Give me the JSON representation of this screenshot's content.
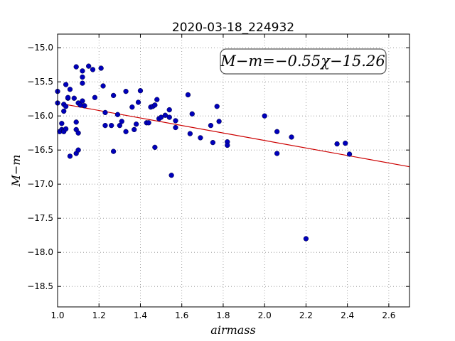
{
  "chart_data": {
    "type": "scatter",
    "title": "2020-03-18_224932",
    "xlabel": "airmass",
    "ylabel": "M−m",
    "xlim": [
      1.0,
      2.7
    ],
    "ylim": [
      -18.8,
      -14.8
    ],
    "xticks": [
      1.0,
      1.2,
      1.4,
      1.6,
      1.8,
      2.0,
      2.2,
      2.4,
      2.6
    ],
    "xtick_labels": [
      "1.0",
      "1.2",
      "1.4",
      "1.6",
      "1.8",
      "2.0",
      "2.2",
      "2.4",
      "2.6"
    ],
    "yticks": [
      -15.0,
      -15.5,
      -16.0,
      -16.5,
      -17.0,
      -17.5,
      -18.0,
      -18.5
    ],
    "ytick_labels": [
      "−15.0",
      "−15.5",
      "−16.0",
      "−16.5",
      "−17.0",
      "−17.5",
      "−18.0",
      "−18.5"
    ],
    "grid": true,
    "annotation": "M−m=−0.55χ−15.26",
    "annotation_placement": "top-right",
    "fit": {
      "slope": -0.55,
      "intercept": -15.26,
      "color": "#cc0000",
      "x_range": [
        1.03,
        2.7
      ]
    },
    "points_color": "#0000bb",
    "points": [
      [
        1.0,
        -15.64
      ],
      [
        1.0,
        -15.81
      ],
      [
        1.01,
        -16.23
      ],
      [
        1.02,
        -16.2
      ],
      [
        1.02,
        -16.11
      ],
      [
        1.03,
        -15.93
      ],
      [
        1.03,
        -16.21
      ],
      [
        1.03,
        -16.23
      ],
      [
        1.03,
        -15.83
      ],
      [
        1.04,
        -15.86
      ],
      [
        1.04,
        -15.54
      ],
      [
        1.04,
        -16.19
      ],
      [
        1.05,
        -15.74
      ],
      [
        1.05,
        -15.73
      ],
      [
        1.06,
        -15.61
      ],
      [
        1.06,
        -16.59
      ],
      [
        1.08,
        -15.74
      ],
      [
        1.09,
        -15.28
      ],
      [
        1.09,
        -16.55
      ],
      [
        1.09,
        -16.2
      ],
      [
        1.09,
        -16.09
      ],
      [
        1.1,
        -16.25
      ],
      [
        1.1,
        -16.5
      ],
      [
        1.1,
        -15.81
      ],
      [
        1.11,
        -15.84
      ],
      [
        1.12,
        -15.43
      ],
      [
        1.12,
        -15.34
      ],
      [
        1.12,
        -15.52
      ],
      [
        1.12,
        -15.78
      ],
      [
        1.13,
        -15.85
      ],
      [
        1.15,
        -15.27
      ],
      [
        1.17,
        -15.32
      ],
      [
        1.18,
        -15.73
      ],
      [
        1.21,
        -15.3
      ],
      [
        1.22,
        -15.56
      ],
      [
        1.23,
        -15.95
      ],
      [
        1.23,
        -16.14
      ],
      [
        1.26,
        -16.14
      ],
      [
        1.27,
        -15.7
      ],
      [
        1.27,
        -16.52
      ],
      [
        1.29,
        -15.98
      ],
      [
        1.3,
        -16.14
      ],
      [
        1.31,
        -16.08
      ],
      [
        1.33,
        -15.64
      ],
      [
        1.33,
        -16.23
      ],
      [
        1.36,
        -15.87
      ],
      [
        1.37,
        -16.2
      ],
      [
        1.38,
        -16.12
      ],
      [
        1.39,
        -15.8
      ],
      [
        1.4,
        -15.63
      ],
      [
        1.43,
        -16.1
      ],
      [
        1.44,
        -16.1
      ],
      [
        1.45,
        -15.87
      ],
      [
        1.46,
        -15.86
      ],
      [
        1.47,
        -15.84
      ],
      [
        1.47,
        -16.46
      ],
      [
        1.48,
        -15.76
      ],
      [
        1.49,
        -16.04
      ],
      [
        1.5,
        -16.02
      ],
      [
        1.52,
        -15.99
      ],
      [
        1.54,
        -16.02
      ],
      [
        1.54,
        -15.91
      ],
      [
        1.55,
        -16.87
      ],
      [
        1.57,
        -16.07
      ],
      [
        1.57,
        -16.17
      ],
      [
        1.63,
        -15.69
      ],
      [
        1.64,
        -16.26
      ],
      [
        1.65,
        -15.97
      ],
      [
        1.69,
        -16.32
      ],
      [
        1.74,
        -16.14
      ],
      [
        1.75,
        -16.39
      ],
      [
        1.77,
        -15.86
      ],
      [
        1.78,
        -16.08
      ],
      [
        1.82,
        -16.38
      ],
      [
        1.82,
        -16.43
      ],
      [
        2.0,
        -16.0
      ],
      [
        2.06,
        -16.23
      ],
      [
        2.06,
        -16.55
      ],
      [
        2.13,
        -16.31
      ],
      [
        2.2,
        -17.8
      ],
      [
        2.35,
        -16.41
      ],
      [
        2.39,
        -16.4
      ],
      [
        2.41,
        -16.56
      ]
    ]
  }
}
